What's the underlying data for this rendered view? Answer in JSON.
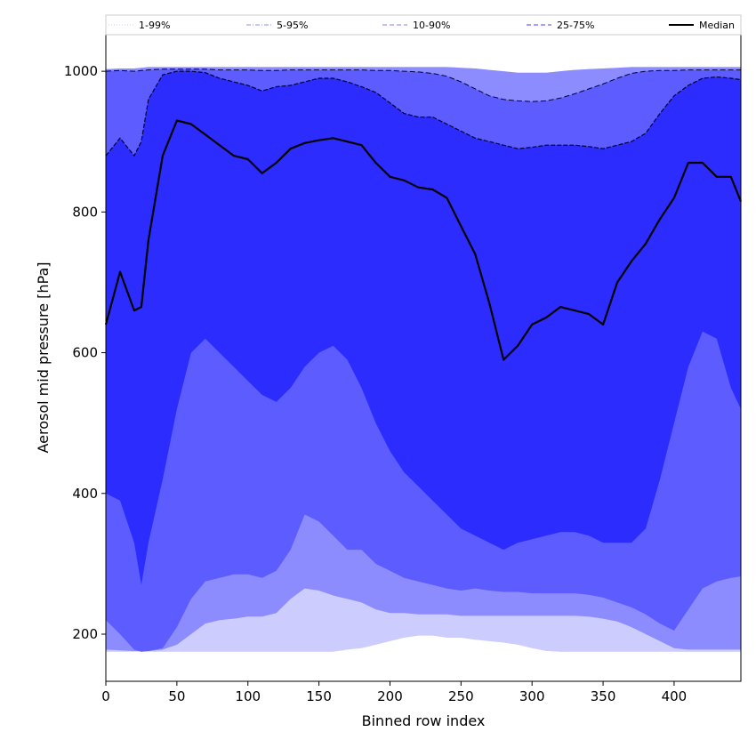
{
  "chart_data": {
    "type": "area",
    "title": "",
    "xlabel": "Binned row index",
    "ylabel": "Aerosol mid pressure [hPa]",
    "xlim": [
      0,
      447
    ],
    "ylim": [
      133,
      1052
    ],
    "x_ticks": [
      0,
      50,
      100,
      150,
      200,
      250,
      300,
      350,
      400
    ],
    "y_ticks": [
      200,
      400,
      600,
      800,
      1000
    ],
    "grid": false,
    "legend_position": "top, spanning full width above the plot",
    "colors": {
      "band_1_99": "#ccccff",
      "band_5_95": "#8c8cff",
      "band_10_90": "#5c5cff",
      "band_25_75": "#2c2cff",
      "median": "#000000"
    },
    "x": [
      0,
      10,
      20,
      25,
      30,
      40,
      50,
      60,
      70,
      80,
      90,
      100,
      110,
      120,
      130,
      140,
      150,
      160,
      170,
      180,
      190,
      200,
      210,
      220,
      230,
      240,
      250,
      260,
      270,
      280,
      290,
      300,
      310,
      320,
      330,
      340,
      350,
      360,
      370,
      380,
      390,
      400,
      410,
      420,
      430,
      440,
      447
    ],
    "series": [
      {
        "name": "Median",
        "values": [
          640,
          715,
          660,
          665,
          760,
          880,
          930,
          925,
          910,
          895,
          880,
          875,
          855,
          870,
          890,
          898,
          902,
          905,
          900,
          895,
          870,
          850,
          845,
          835,
          832,
          820,
          780,
          740,
          670,
          590,
          610,
          640,
          650,
          665,
          660,
          655,
          640,
          700,
          730,
          755,
          790,
          820,
          870,
          870,
          850,
          850,
          815
        ]
      },
      {
        "name": "25-75%",
        "lower": [
          400,
          390,
          330,
          270,
          330,
          420,
          520,
          600,
          620,
          600,
          580,
          560,
          540,
          530,
          550,
          580,
          600,
          610,
          590,
          550,
          500,
          460,
          430,
          410,
          390,
          370,
          350,
          340,
          330,
          320,
          330,
          335,
          340,
          345,
          345,
          340,
          330,
          330,
          330,
          350,
          420,
          500,
          580,
          630,
          620,
          550,
          520
        ],
        "upper": [
          880,
          905,
          880,
          900,
          960,
          995,
          1000,
          1000,
          998,
          990,
          985,
          980,
          972,
          978,
          980,
          985,
          990,
          990,
          985,
          978,
          970,
          955,
          940,
          935,
          935,
          925,
          915,
          905,
          900,
          895,
          890,
          892,
          895,
          895,
          895,
          893,
          890,
          895,
          900,
          912,
          940,
          965,
          980,
          990,
          992,
          990,
          988
        ]
      },
      {
        "name": "10-90%",
        "lower": [
          220,
          200,
          178,
          175,
          176,
          180,
          210,
          250,
          275,
          280,
          285,
          285,
          280,
          290,
          320,
          370,
          360,
          340,
          320,
          320,
          300,
          290,
          280,
          275,
          270,
          265,
          262,
          265,
          262,
          260,
          260,
          258,
          258,
          258,
          258,
          256,
          252,
          245,
          238,
          228,
          215,
          205,
          235,
          265,
          275,
          280,
          282
        ],
        "upper": [
          1000,
          1001,
          1000,
          1001,
          1002,
          1003,
          1003,
          1003,
          1003,
          1002,
          1002,
          1002,
          1001,
          1001,
          1002,
          1002,
          1002,
          1002,
          1002,
          1002,
          1001,
          1001,
          1000,
          999,
          997,
          993,
          985,
          975,
          965,
          960,
          958,
          957,
          958,
          962,
          968,
          975,
          982,
          990,
          997,
          1000,
          1001,
          1001,
          1002,
          1002,
          1002,
          1002,
          1002
        ]
      },
      {
        "name": "5-95%",
        "lower": [
          178,
          177,
          176,
          176,
          176,
          178,
          185,
          200,
          215,
          220,
          222,
          225,
          225,
          230,
          250,
          265,
          262,
          255,
          250,
          245,
          235,
          230,
          230,
          228,
          228,
          228,
          226,
          226,
          226,
          226,
          226,
          226,
          226,
          226,
          226,
          225,
          222,
          218,
          210,
          200,
          190,
          180,
          178,
          178,
          178,
          178,
          178
        ]
      },
      {
        "name": "1-99%",
        "lower": [
          175,
          175,
          175,
          175,
          175,
          175,
          175,
          175,
          175,
          175,
          175,
          175,
          175,
          175,
          175,
          175,
          175,
          175,
          178,
          180,
          185,
          190,
          195,
          198,
          198,
          195,
          195,
          192,
          190,
          188,
          185,
          180,
          176,
          175,
          175,
          175,
          175,
          175,
          175,
          175,
          175,
          175,
          175,
          175,
          175,
          175,
          175
        ],
        "upper": [
          1003,
          1004,
          1004,
          1005,
          1006,
          1006,
          1006,
          1006,
          1006,
          1006,
          1006,
          1006,
          1006,
          1006,
          1006,
          1006,
          1006,
          1006,
          1006,
          1006,
          1006,
          1006,
          1006,
          1006,
          1006,
          1006,
          1005,
          1004,
          1002,
          1000,
          998,
          998,
          998,
          1000,
          1002,
          1003,
          1004,
          1005,
          1006,
          1006,
          1006,
          1006,
          1006,
          1006,
          1006,
          1006,
          1006
        ]
      }
    ],
    "legend": [
      {
        "label": "1-99%",
        "style": "dotted",
        "color": "#ccccff"
      },
      {
        "label": "5-95%",
        "style": "dashdot",
        "color": "#8c8cff"
      },
      {
        "label": "10-90%",
        "style": "dashed",
        "color": "#8080ff"
      },
      {
        "label": "25-75%",
        "style": "dashed",
        "color": "#4040ff"
      },
      {
        "label": "Median",
        "style": "solid",
        "color": "#000000"
      }
    ]
  }
}
